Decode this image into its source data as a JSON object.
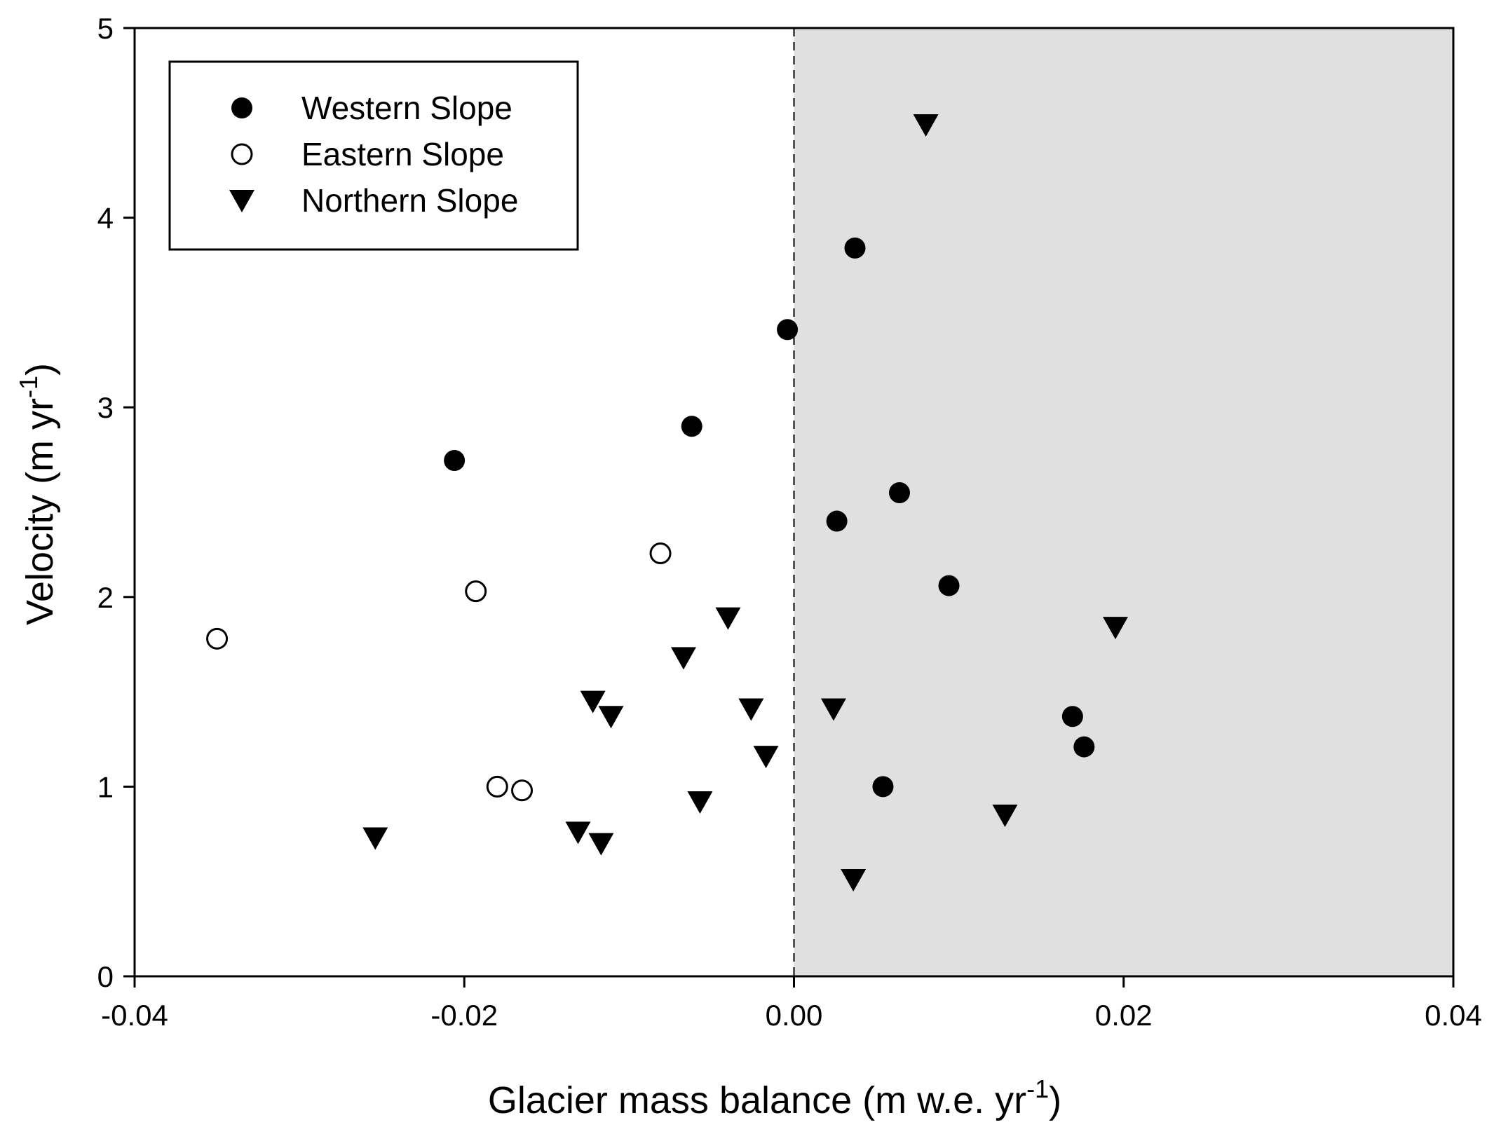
{
  "chart_data": {
    "type": "scatter",
    "xlabel": "Glacier mass balance (m w.e. yr",
    "xlabel_sup": "-1",
    "xlabel_end": ")",
    "ylabel": "Velocity (m yr",
    "ylabel_sup": "-1",
    "ylabel_end": ")",
    "xlim": [
      -0.04,
      0.04
    ],
    "ylim": [
      0,
      5
    ],
    "x_ticks": [
      -0.04,
      -0.02,
      0.0,
      0.02,
      0.04
    ],
    "x_tick_labels": [
      "-0.04",
      "-0.02",
      "0.00",
      "0.02",
      "0.04"
    ],
    "y_ticks": [
      0,
      1,
      2,
      3,
      4,
      5
    ],
    "y_tick_labels": [
      "0",
      "1",
      "2",
      "3",
      "4",
      "5"
    ],
    "grid": false,
    "legend_position": "top-left",
    "shaded_region": {
      "x_from": 0.0,
      "x_to": 0.04,
      "color": "#e0e0e0"
    },
    "reference_line": {
      "x": 0.0,
      "style": "dashed"
    },
    "series": [
      {
        "name": "Western Slope",
        "marker": "filled-circle",
        "color": "#000000",
        "points": [
          [
            -0.0206,
            2.72
          ],
          [
            -0.0062,
            2.9
          ],
          [
            -0.0004,
            3.41
          ],
          [
            0.0037,
            3.84
          ],
          [
            0.0026,
            2.4
          ],
          [
            0.0064,
            2.55
          ],
          [
            0.0094,
            2.06
          ],
          [
            0.0054,
            1.0
          ],
          [
            0.0169,
            1.37
          ],
          [
            0.0176,
            1.21
          ]
        ]
      },
      {
        "name": "Eastern Slope",
        "marker": "open-circle",
        "color": "#000000",
        "points": [
          [
            -0.035,
            1.78
          ],
          [
            -0.0193,
            2.03
          ],
          [
            -0.0081,
            2.23
          ],
          [
            -0.018,
            1.0
          ],
          [
            -0.0165,
            0.98
          ]
        ]
      },
      {
        "name": "Northern Slope",
        "marker": "filled-triangle-down",
        "color": "#000000",
        "points": [
          [
            -0.0254,
            0.73
          ],
          [
            -0.0131,
            0.76
          ],
          [
            -0.0117,
            0.7
          ],
          [
            -0.0122,
            1.45
          ],
          [
            -0.0111,
            1.37
          ],
          [
            -0.0067,
            1.68
          ],
          [
            -0.004,
            1.89
          ],
          [
            -0.0057,
            0.92
          ],
          [
            -0.0026,
            1.41
          ],
          [
            -0.0017,
            1.16
          ],
          [
            0.0024,
            1.41
          ],
          [
            0.0036,
            0.51
          ],
          [
            0.008,
            4.49
          ],
          [
            0.0128,
            0.85
          ],
          [
            0.0195,
            1.84
          ]
        ]
      }
    ]
  }
}
